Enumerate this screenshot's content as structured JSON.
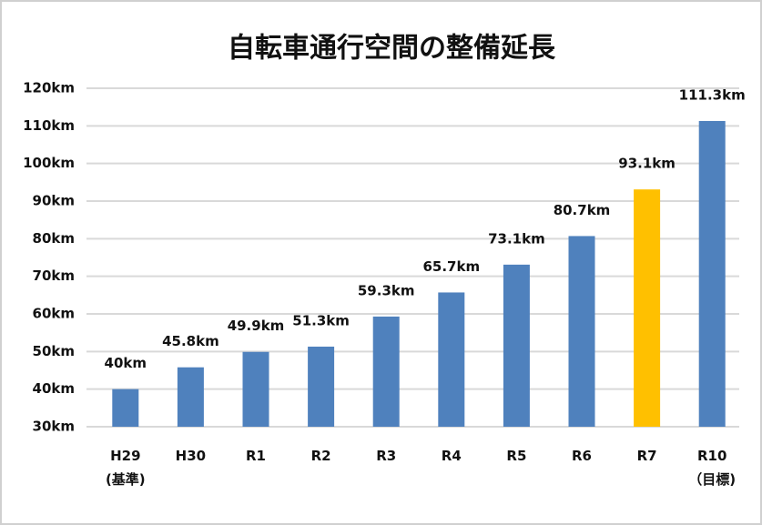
{
  "chart_data": {
    "type": "bar",
    "title": "自転車通行空間の整備延長",
    "categories": [
      "H29\n(基準)",
      "H30",
      "R1",
      "R2",
      "R3",
      "R4",
      "R5",
      "R6",
      "R7",
      "R10\n（目標)"
    ],
    "values": [
      40,
      45.8,
      49.9,
      51.3,
      59.3,
      65.7,
      73.1,
      80.7,
      93.1,
      111.3
    ],
    "value_labels": [
      "40km",
      "45.8km",
      "49.9km",
      "51.3km",
      "59.3km",
      "65.7km",
      "73.1km",
      "80.7km",
      "93.1km",
      "111.3km"
    ],
    "colors": [
      "#4f81bd",
      "#4f81bd",
      "#4f81bd",
      "#4f81bd",
      "#4f81bd",
      "#4f81bd",
      "#4f81bd",
      "#4f81bd",
      "#ffc000",
      "#4f81bd"
    ],
    "ylim": [
      30,
      120
    ],
    "yticks": [
      {
        "value": 30,
        "label": "30km"
      },
      {
        "value": 40,
        "label": "40km"
      },
      {
        "value": 50,
        "label": "50km"
      },
      {
        "value": 60,
        "label": "60km"
      },
      {
        "value": 70,
        "label": "70km"
      },
      {
        "value": 80,
        "label": "80km"
      },
      {
        "value": 90,
        "label": "90km"
      },
      {
        "value": 100,
        "label": "100km"
      },
      {
        "value": 110,
        "label": "110km"
      },
      {
        "value": 120,
        "label": "120km"
      }
    ],
    "grid": true
  }
}
